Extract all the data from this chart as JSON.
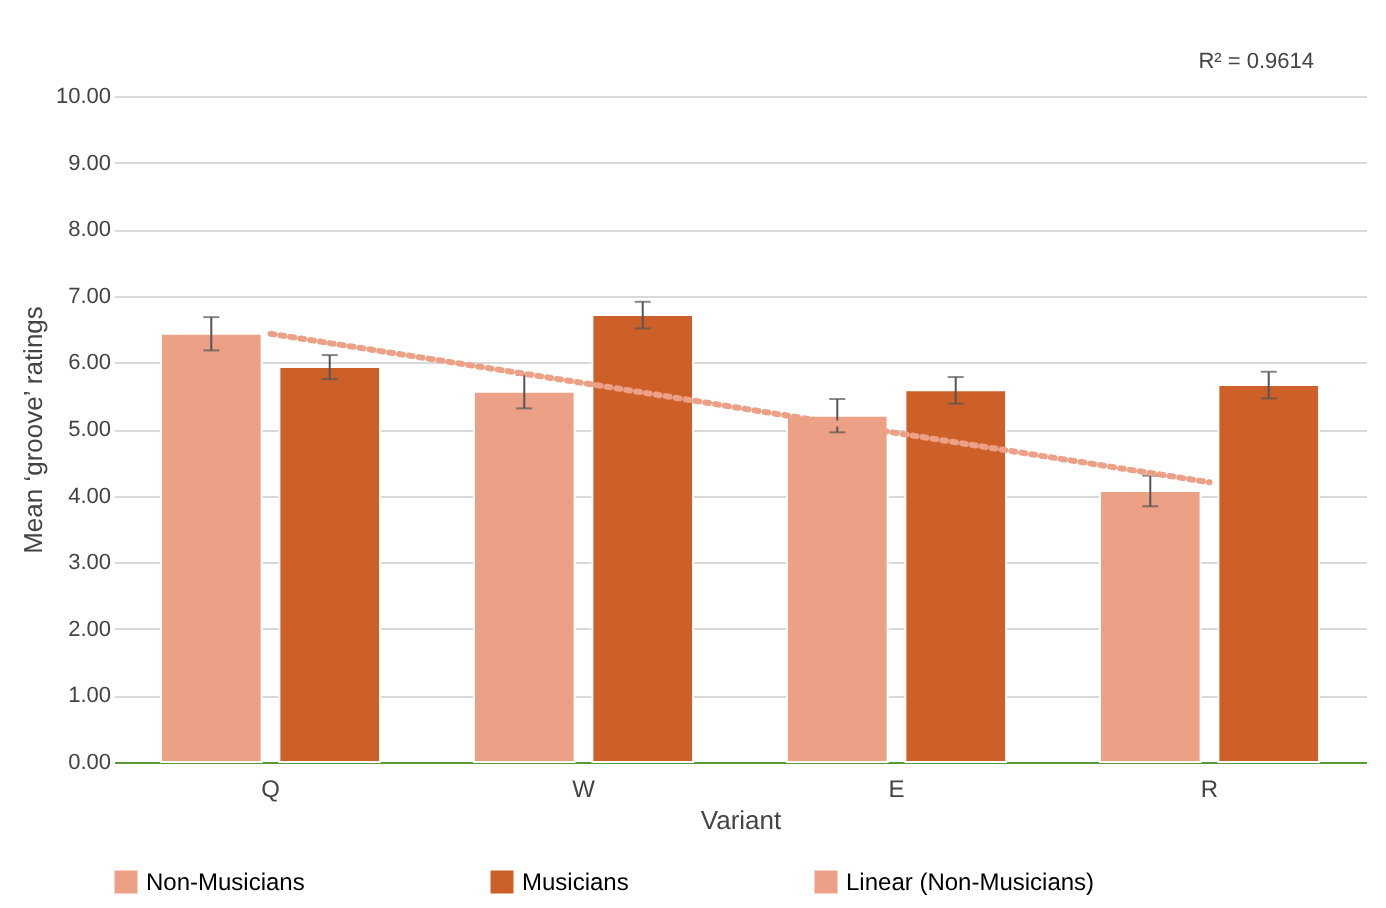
{
  "chart_data": {
    "type": "bar",
    "xlabel": "Variant",
    "ylabel": "Mean ‘groove’ ratings",
    "categories": [
      "Q",
      "W",
      "E",
      "R"
    ],
    "series": [
      {
        "name": "Non-Musicians",
        "color": "#eca187",
        "values": [
          6.43,
          5.56,
          5.2,
          4.07
        ],
        "errors": [
          0.25,
          0.25,
          0.25,
          0.23
        ]
      },
      {
        "name": "Musicians",
        "color": "#cd5f28",
        "values": [
          5.93,
          6.71,
          5.58,
          5.66
        ],
        "errors": [
          0.18,
          0.2,
          0.2,
          0.2
        ]
      },
      {
        "name": "Linear (Non-Musicians)",
        "type": "line",
        "line_style": "dotted",
        "color": "#eca187",
        "values": [
          6.43,
          5.69,
          4.94,
          4.2
        ]
      }
    ],
    "ylim": [
      0,
      10
    ],
    "yticks": [
      {
        "value": 0,
        "label": "0.00"
      },
      {
        "value": 1,
        "label": "1.00"
      },
      {
        "value": 2,
        "label": "2.00"
      },
      {
        "value": 3,
        "label": "3.00"
      },
      {
        "value": 4,
        "label": "4.00"
      },
      {
        "value": 5,
        "label": "5.00"
      },
      {
        "value": 6,
        "label": "6.00"
      },
      {
        "value": 7,
        "label": "7.00"
      },
      {
        "value": 8,
        "label": "8.00"
      },
      {
        "value": 9,
        "label": "9.00"
      },
      {
        "value": 10,
        "label": "10.00"
      }
    ],
    "grid": "y",
    "legend": "bottom",
    "annotations": [
      "R² = 0.9614"
    ]
  }
}
